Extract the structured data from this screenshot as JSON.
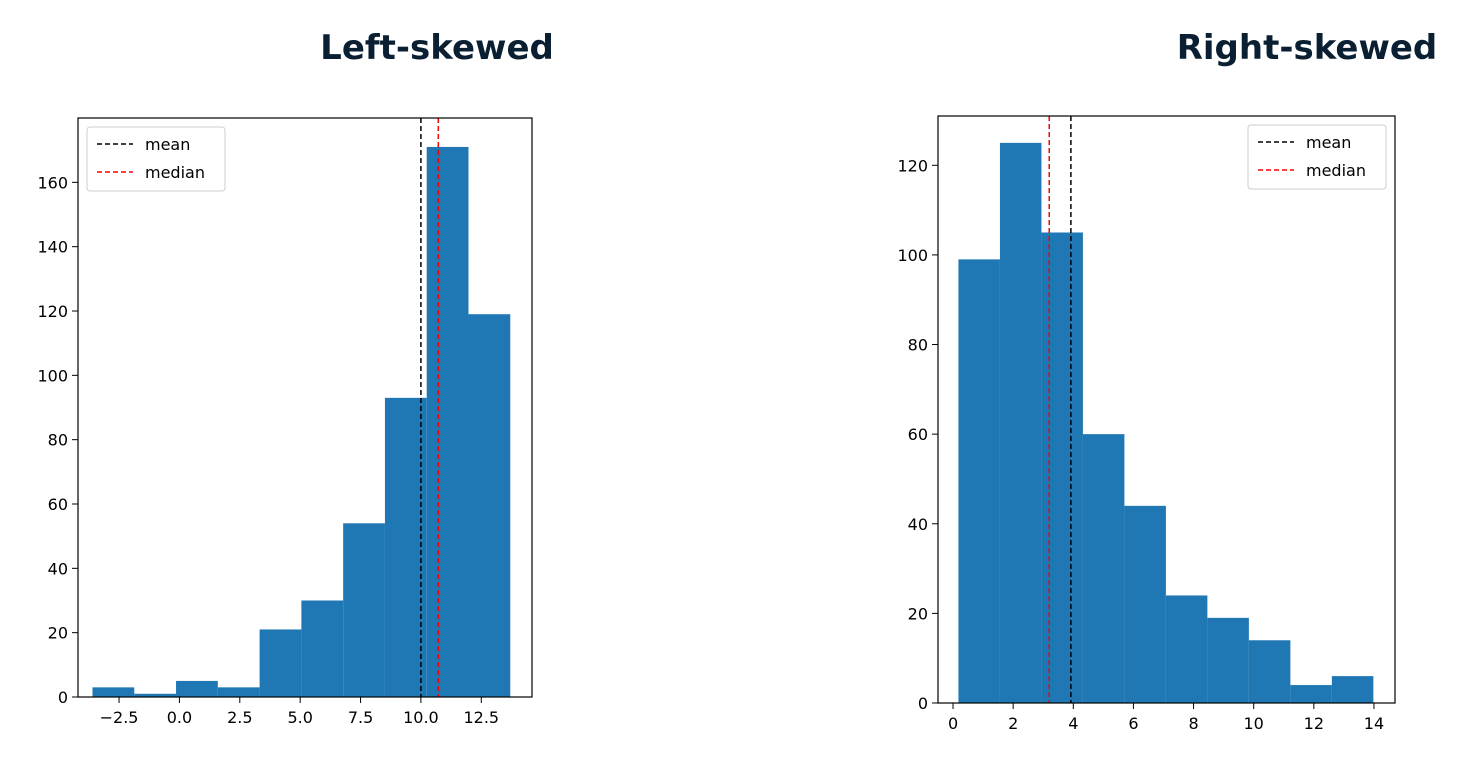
{
  "chart_data": [
    {
      "type": "bar",
      "title": "Left-skewed",
      "xlim": [
        -4.2,
        14.6
      ],
      "ylim": [
        0,
        180
      ],
      "xticks": [
        -2.5,
        0.0,
        2.5,
        5.0,
        7.5,
        10.0,
        12.5
      ],
      "xtick_labels": [
        "−2.5",
        "0.0",
        "2.5",
        "5.0",
        "7.5",
        "10.0",
        "12.5"
      ],
      "yticks": [
        0,
        20,
        40,
        60,
        80,
        100,
        120,
        140,
        160
      ],
      "ytick_labels": [
        "0",
        "20",
        "40",
        "60",
        "80",
        "100",
        "120",
        "140",
        "160"
      ],
      "bin_edges": [
        -3.6,
        -1.87,
        -0.14,
        1.59,
        3.32,
        5.05,
        6.78,
        8.51,
        10.24,
        11.97,
        13.7
      ],
      "values": [
        3,
        1,
        5,
        3,
        21,
        30,
        54,
        93,
        171,
        119
      ],
      "bar_color": "#1f77b4",
      "mean": 10.0,
      "median": 10.72,
      "mean_color": "#000000",
      "median_color": "#ff0000",
      "legend": [
        "mean",
        "median"
      ],
      "legend_position": "top-left",
      "grid": false
    },
    {
      "type": "bar",
      "title": "Right-skewed",
      "xlim": [
        -0.5,
        14.7
      ],
      "ylim": [
        0,
        131
      ],
      "xticks": [
        0,
        2,
        4,
        6,
        8,
        10,
        12,
        14
      ],
      "xtick_labels": [
        "0",
        "2",
        "4",
        "6",
        "8",
        "10",
        "12",
        "14"
      ],
      "yticks": [
        0,
        20,
        40,
        60,
        80,
        100,
        120
      ],
      "ytick_labels": [
        "0",
        "20",
        "40",
        "60",
        "80",
        "100",
        "120"
      ],
      "bin_edges": [
        0.18,
        1.56,
        2.94,
        4.32,
        5.7,
        7.08,
        8.46,
        9.84,
        11.22,
        12.6,
        13.98
      ],
      "values": [
        99,
        125,
        105,
        60,
        44,
        24,
        19,
        14,
        4,
        6
      ],
      "bar_color": "#1f77b4",
      "mean": 3.92,
      "median": 3.2,
      "mean_color": "#000000",
      "median_color": "#ff0000",
      "legend": [
        "mean",
        "median"
      ],
      "legend_position": "top-right",
      "grid": false
    }
  ]
}
